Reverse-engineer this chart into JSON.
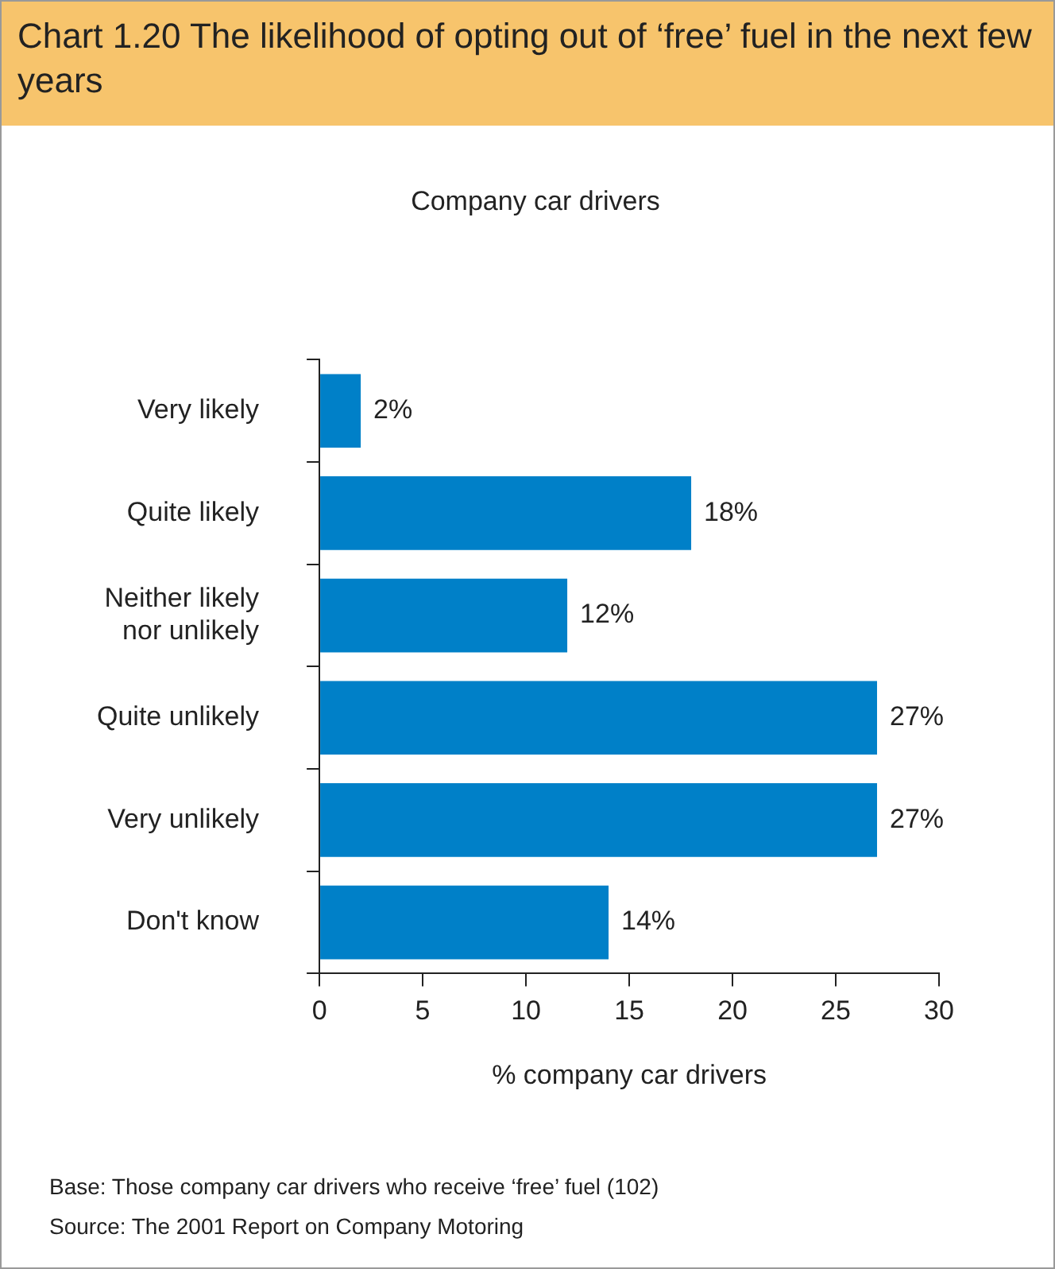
{
  "chart_data": {
    "type": "bar",
    "orientation": "horizontal",
    "title": "Chart 1.20 The likelihood of opting out of ‘free’ fuel in the next few years",
    "subtitle": "Company car drivers",
    "xlabel": "% company car drivers",
    "categories": [
      "Very likely",
      "Quite likely",
      "Neither likely nor unlikely",
      "Quite unlikely",
      "Very unlikely",
      "Don't know"
    ],
    "values": [
      2,
      18,
      12,
      27,
      27,
      14
    ],
    "value_labels": [
      "2%",
      "18%",
      "12%",
      "27%",
      "27%",
      "14%"
    ],
    "color": "#0080c8",
    "xlim": [
      0,
      30
    ],
    "xticks": [
      0,
      5,
      10,
      15,
      20,
      25,
      30
    ],
    "grid": false,
    "legend": false,
    "annotations": [
      "Base: Those company car drivers who receive ‘free’ fuel (102)",
      "Source: The 2001 Report on Company Motoring"
    ]
  }
}
